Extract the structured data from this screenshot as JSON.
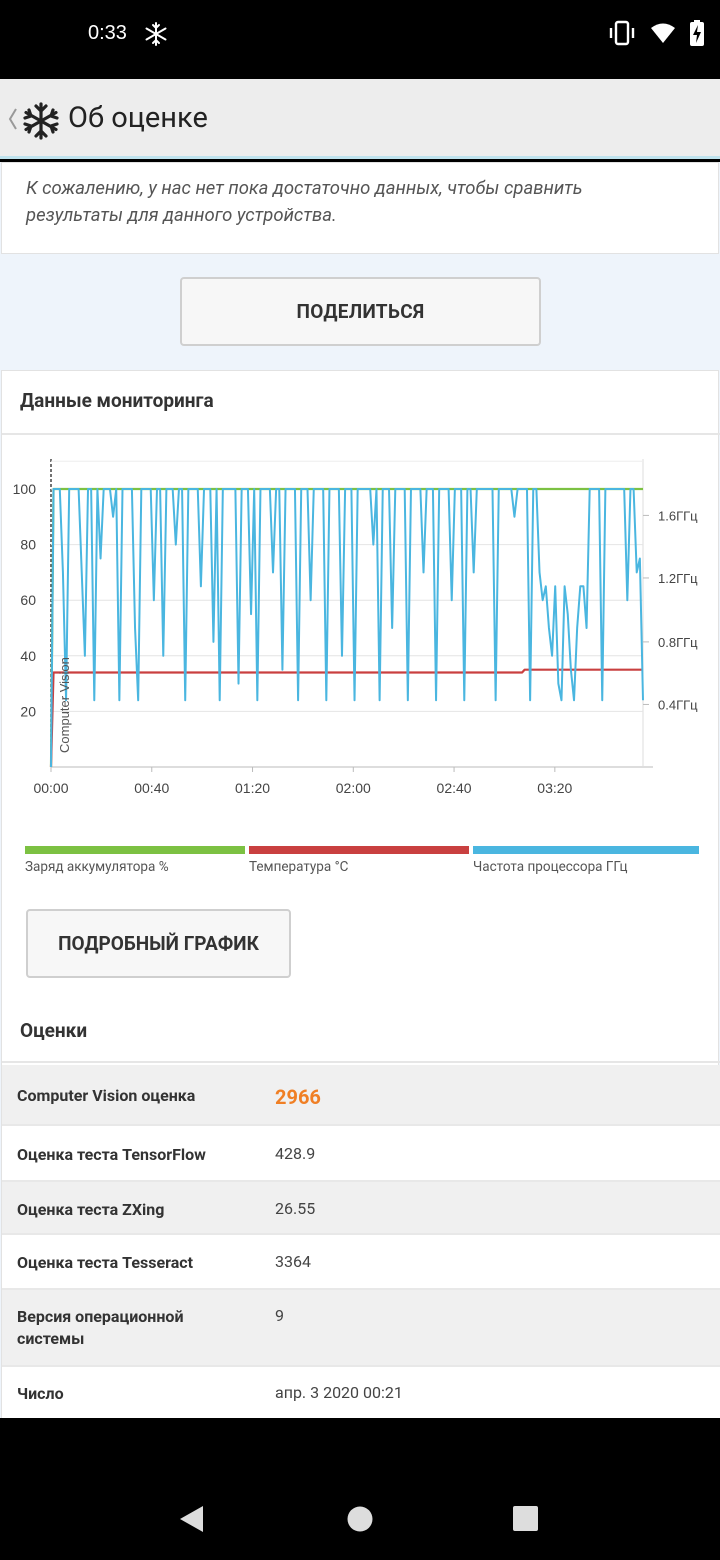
{
  "status_bar": {
    "time": "0:33"
  },
  "app_bar": {
    "title": "Об оценке"
  },
  "notice": {
    "text": "К сожалению, у нас нет пока достаточно данных, чтобы сравнить результаты для данного устройства."
  },
  "share_button": "ПОДЕЛИТЬСЯ",
  "monitoring": {
    "title": "Данные мониторинга",
    "detail_button": "ПОДРОБНЫЙ ГРАФИК"
  },
  "chart_data": {
    "type": "line",
    "x_ticks": [
      "00:00",
      "00:40",
      "01:20",
      "02:00",
      "02:40",
      "03:20"
    ],
    "x_range_seconds": [
      0,
      235
    ],
    "y_left_ticks": [
      "100",
      "80",
      "60",
      "40",
      "20"
    ],
    "y_left_range": [
      0,
      100
    ],
    "y_right_ticks": [
      "1.6ГГц",
      "1.2ГГц",
      "0.8ГГц",
      "0.4ГГц"
    ],
    "annotation": "Computer Vision",
    "grid": true,
    "series": [
      {
        "name": "Заряд аккумулятора %",
        "color": "#7cc142",
        "points": [
          [
            0,
            0
          ],
          [
            1,
            100
          ],
          [
            235,
            100
          ]
        ]
      },
      {
        "name": "Температура °C",
        "color": "#c94040",
        "points": [
          [
            0,
            0
          ],
          [
            1,
            34
          ],
          [
            187,
            34
          ],
          [
            188,
            35
          ],
          [
            235,
            35
          ]
        ]
      },
      {
        "name": "Частота процессора ГГц",
        "color": "#4ab6e0",
        "values": [
          100,
          100,
          100,
          70,
          24,
          100,
          100,
          100,
          100,
          70,
          40,
          100,
          100,
          24,
          100,
          75,
          100,
          100,
          100,
          90,
          100,
          24,
          100,
          100,
          100,
          100,
          50,
          24,
          100,
          100,
          100,
          100,
          60,
          100,
          100,
          40,
          100,
          100,
          100,
          80,
          100,
          100,
          24,
          100,
          100,
          100,
          100,
          65,
          100,
          100,
          100,
          45,
          100,
          24,
          100,
          100,
          100,
          100,
          100,
          30,
          100,
          100,
          100,
          55,
          100,
          24,
          100,
          100,
          100,
          100,
          70,
          100,
          100,
          35,
          100,
          100,
          100,
          100,
          24,
          100,
          100,
          100,
          60,
          100,
          100,
          100,
          100,
          24,
          100,
          100,
          100,
          100,
          40,
          100,
          100,
          100,
          24,
          100,
          100,
          100,
          100,
          100,
          80,
          100,
          24,
          100,
          100,
          100,
          50,
          100,
          100,
          100,
          100,
          24,
          100,
          100,
          100,
          100,
          70,
          100,
          100,
          100,
          24,
          100,
          100,
          100,
          100,
          60,
          100,
          100,
          100,
          24,
          100,
          100,
          70,
          100,
          100,
          100,
          100,
          100,
          100,
          24,
          100,
          100,
          100,
          100,
          100,
          90,
          100,
          100,
          100,
          100,
          24,
          100,
          100,
          70,
          60,
          65,
          50,
          40,
          65,
          30,
          24,
          65,
          55,
          35,
          24,
          50,
          65,
          65,
          50,
          100,
          100,
          100,
          100,
          24,
          100,
          100,
          100,
          100,
          100,
          100,
          100,
          60,
          100,
          100,
          70,
          75,
          24
        ]
      }
    ]
  },
  "legend": [
    {
      "label": "Заряд аккумулятора %",
      "color": "#7cc142"
    },
    {
      "label": "Температура °C",
      "color": "#c94040"
    },
    {
      "label": "Частота процессора ГГц",
      "color": "#4ab6e0"
    }
  ],
  "scores": {
    "title": "Оценки",
    "rows": [
      {
        "label": "Computer Vision оценка",
        "value": "2966"
      },
      {
        "label": "Оценка теста TensorFlow",
        "value": "428.9"
      },
      {
        "label": "Оценка теста ZXing",
        "value": "26.55"
      },
      {
        "label": "Оценка теста Tesseract",
        "value": "3364"
      },
      {
        "label": "Версия операционной системы",
        "value": "9"
      },
      {
        "label": "Число",
        "value": "апр. 3 2020 00:21"
      }
    ]
  }
}
